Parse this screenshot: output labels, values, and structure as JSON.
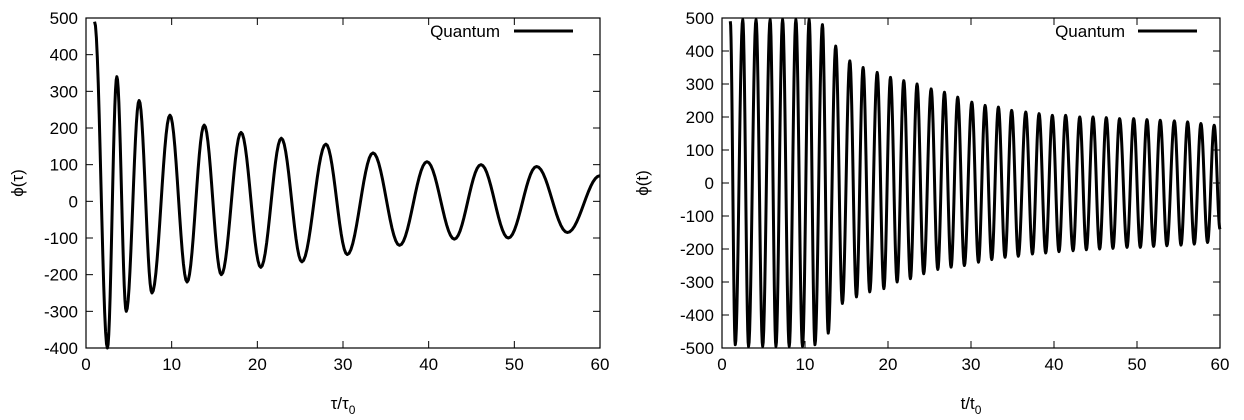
{
  "chart_data": [
    {
      "type": "line",
      "title": "",
      "xlabel": "τ/τ",
      "xlabel_sub": "0",
      "ylabel": "ϕ(τ)",
      "xlim": [
        0,
        60
      ],
      "ylim": [
        -400,
        500
      ],
      "xticks": [
        "0",
        "10",
        "20",
        "30",
        "40",
        "50",
        "60"
      ],
      "yticks": [
        "500",
        "400",
        "300",
        "200",
        "100",
        "0",
        "-100",
        "-200",
        "-300",
        "-400"
      ],
      "grid": false,
      "legend_position": "top-right",
      "series": [
        {
          "name": "Quantum",
          "color": "#000000",
          "points": [
            [
              1.0,
              490
            ],
            [
              2.5,
              -400
            ],
            [
              3.6,
              340
            ],
            [
              4.7,
              -300
            ],
            [
              6.2,
              275
            ],
            [
              7.7,
              -250
            ],
            [
              9.8,
              235
            ],
            [
              11.8,
              -220
            ],
            [
              13.8,
              208
            ],
            [
              15.8,
              -200
            ],
            [
              18.1,
              188
            ],
            [
              20.4,
              -180
            ],
            [
              22.8,
              172
            ],
            [
              25.2,
              -165
            ],
            [
              28.0,
              156
            ],
            [
              30.5,
              -145
            ],
            [
              33.5,
              132
            ],
            [
              36.6,
              -120
            ],
            [
              39.8,
              108
            ],
            [
              43.0,
              -103
            ],
            [
              46.1,
              100
            ],
            [
              49.3,
              -100
            ],
            [
              52.6,
              95
            ],
            [
              56.2,
              -85
            ],
            [
              60.0,
              70
            ]
          ]
        }
      ]
    },
    {
      "type": "line",
      "title": "",
      "xlabel": "t/t",
      "xlabel_sub": "0",
      "ylabel": "ϕ(t)",
      "xlim": [
        0,
        60
      ],
      "ylim": [
        -500,
        500
      ],
      "xticks": [
        "0",
        "10",
        "20",
        "30",
        "40",
        "50",
        "60"
      ],
      "yticks": [
        "500",
        "400",
        "300",
        "200",
        "100",
        "0",
        "-100",
        "-200",
        "-300",
        "-400",
        "-500"
      ],
      "grid": false,
      "legend_position": "top-right",
      "series": [
        {
          "name": "Quantum",
          "color": "#000000",
          "points": [
            [
              1.0,
              490
            ],
            [
              1.6,
              -490
            ],
            [
              2.5,
              495
            ],
            [
              3.2,
              -495
            ],
            [
              4.1,
              495
            ],
            [
              4.9,
              -495
            ],
            [
              5.8,
              495
            ],
            [
              6.5,
              -495
            ],
            [
              7.3,
              495
            ],
            [
              8.1,
              -495
            ],
            [
              8.9,
              495
            ],
            [
              9.7,
              -495
            ],
            [
              10.5,
              495
            ],
            [
              11.2,
              -490
            ],
            [
              12.1,
              480
            ],
            [
              12.8,
              -455
            ],
            [
              13.7,
              415
            ],
            [
              14.5,
              -365
            ],
            [
              15.4,
              370
            ],
            [
              16.2,
              -345
            ],
            [
              17.0,
              350
            ],
            [
              17.8,
              -330
            ],
            [
              18.7,
              335
            ],
            [
              19.5,
              -320
            ],
            [
              20.3,
              320
            ],
            [
              21.1,
              -300
            ],
            [
              21.9,
              310
            ],
            [
              22.7,
              -290
            ],
            [
              23.5,
              300
            ],
            [
              24.3,
              -275
            ],
            [
              25.2,
              285
            ],
            [
              26.0,
              -262
            ],
            [
              26.8,
              275
            ],
            [
              27.6,
              -255
            ],
            [
              28.4,
              260
            ],
            [
              29.2,
              -250
            ],
            [
              30.1,
              245
            ],
            [
              30.9,
              -240
            ],
            [
              31.7,
              235
            ],
            [
              32.5,
              -232
            ],
            [
              33.3,
              230
            ],
            [
              34.1,
              -225
            ],
            [
              34.9,
              220
            ],
            [
              35.7,
              -222
            ],
            [
              36.6,
              215
            ],
            [
              37.4,
              -215
            ],
            [
              38.2,
              210
            ],
            [
              39.0,
              -212
            ],
            [
              39.8,
              205
            ],
            [
              40.6,
              -208
            ],
            [
              41.4,
              205
            ],
            [
              42.3,
              -205
            ],
            [
              43.1,
              200
            ],
            [
              43.9,
              -202
            ],
            [
              44.7,
              200
            ],
            [
              45.5,
              -200
            ],
            [
              46.3,
              198
            ],
            [
              47.1,
              -198
            ],
            [
              47.9,
              195
            ],
            [
              48.8,
              -195
            ],
            [
              49.6,
              195
            ],
            [
              50.4,
              -195
            ],
            [
              51.2,
              192
            ],
            [
              52.0,
              -192
            ],
            [
              52.8,
              190
            ],
            [
              53.6,
              -190
            ],
            [
              54.5,
              188
            ],
            [
              55.3,
              -188
            ],
            [
              56.1,
              185
            ],
            [
              56.9,
              -185
            ],
            [
              57.7,
              180
            ],
            [
              58.5,
              -180
            ],
            [
              59.3,
              175
            ],
            [
              60.0,
              -140
            ]
          ]
        }
      ]
    }
  ]
}
